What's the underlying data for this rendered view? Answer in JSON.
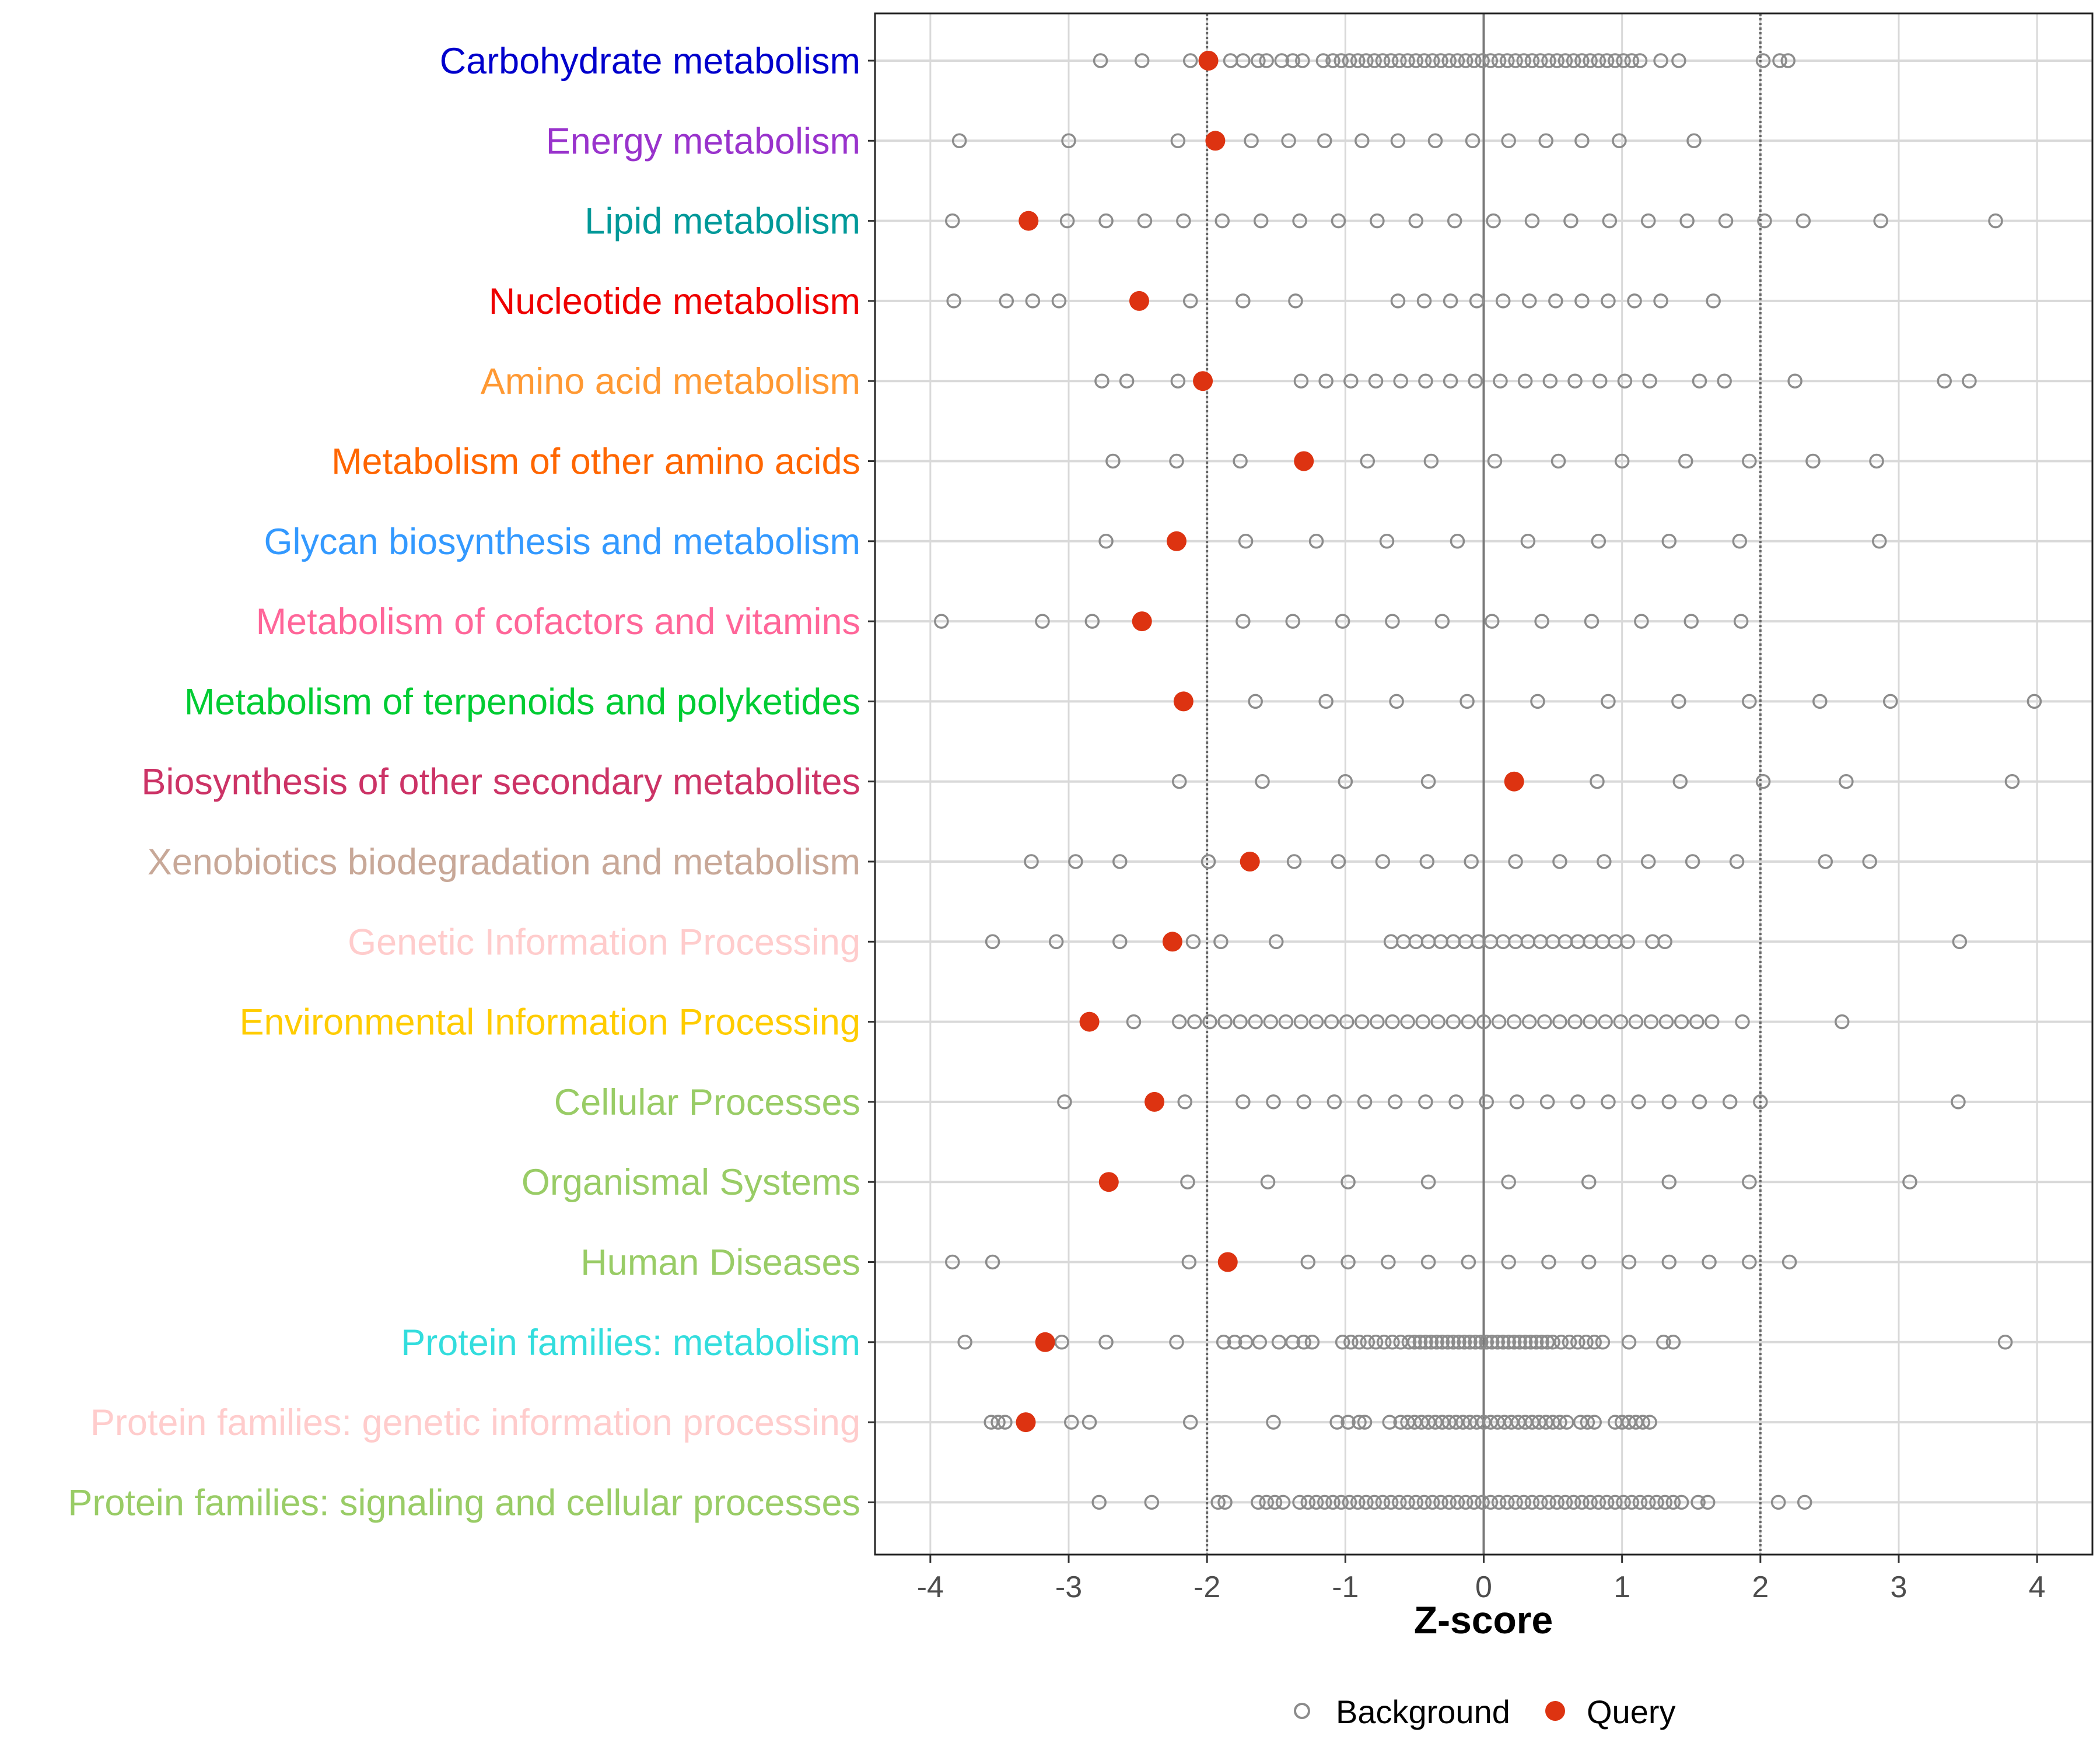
{
  "chart_data": {
    "type": "scatter",
    "title": "",
    "xlabel": "Z-score",
    "ylabel": "",
    "xlim": [
      -4.4,
      4.4
    ],
    "x_ticks": [
      "-4",
      "-3",
      "-2",
      "-1",
      "0",
      "1",
      "2",
      "3",
      "4"
    ],
    "reference_lines": [
      -2,
      0,
      2
    ],
    "grid": true,
    "legend": {
      "position": "bottom",
      "entries": [
        {
          "name": "Background",
          "marker": "open-circle",
          "color": "#8c8c8c"
        },
        {
          "name": "Query",
          "marker": "filled-circle",
          "color": "#dd3311"
        }
      ]
    },
    "categories": [
      {
        "label": "Carbohydrate metabolism",
        "color": "#0000cc",
        "query": -1.99,
        "background": [
          -2.77,
          -2.47,
          -2.12,
          -1.99,
          -1.83,
          -1.74,
          -1.63,
          -1.57,
          -1.46,
          -1.38,
          -1.31,
          -1.16,
          -1.09,
          -1.03,
          -0.97,
          -0.91,
          -0.85,
          -0.79,
          -0.73,
          -0.67,
          -0.61,
          -0.55,
          -0.49,
          -0.43,
          -0.37,
          -0.31,
          -0.25,
          -0.19,
          -0.13,
          -0.07,
          -0.01,
          0.05,
          0.11,
          0.17,
          0.23,
          0.29,
          0.35,
          0.41,
          0.47,
          0.53,
          0.59,
          0.65,
          0.71,
          0.77,
          0.83,
          0.89,
          0.95,
          1.01,
          1.07,
          1.13,
          1.28,
          1.41,
          2.02,
          2.14,
          2.2
        ]
      },
      {
        "label": "Energy metabolism",
        "color": "#9933cc",
        "query": -1.94,
        "background": [
          -3.79,
          -3.0,
          -2.21,
          -1.68,
          -1.41,
          -1.15,
          -0.88,
          -0.62,
          -0.35,
          -0.08,
          0.18,
          0.45,
          0.71,
          0.98,
          1.52
        ]
      },
      {
        "label": "Lipid metabolism",
        "color": "#009999",
        "query": -3.29,
        "background": [
          -3.84,
          -3.01,
          -2.73,
          -2.45,
          -2.17,
          -1.89,
          -1.61,
          -1.33,
          -1.05,
          -0.77,
          -0.49,
          -0.21,
          0.07,
          0.35,
          0.63,
          0.91,
          1.19,
          1.47,
          1.75,
          2.03,
          2.31,
          2.87,
          3.7
        ]
      },
      {
        "label": "Nucleotide metabolism",
        "color": "#ee0000",
        "query": -2.49,
        "background": [
          -3.83,
          -3.45,
          -3.26,
          -3.07,
          -2.12,
          -1.74,
          -1.36,
          -0.62,
          -0.43,
          -0.24,
          -0.05,
          0.14,
          0.33,
          0.52,
          0.71,
          0.9,
          1.09,
          1.28,
          1.66
        ]
      },
      {
        "label": "Amino acid metabolism",
        "color": "#ff9933",
        "query": -2.03,
        "background": [
          -2.76,
          -2.58,
          -2.21,
          -1.32,
          -1.14,
          -0.96,
          -0.78,
          -0.6,
          -0.42,
          -0.24,
          -0.06,
          0.12,
          0.3,
          0.48,
          0.66,
          0.84,
          1.02,
          1.2,
          1.56,
          1.74,
          2.25,
          3.33,
          3.51
        ]
      },
      {
        "label": "Metabolism of other amino acids",
        "color": "#ff6600",
        "query": -1.3,
        "background": [
          -2.68,
          -2.22,
          -1.76,
          -0.84,
          -0.38,
          0.08,
          0.54,
          1.0,
          1.46,
          1.92,
          2.38,
          2.84
        ]
      },
      {
        "label": "Glycan biosynthesis and metabolism",
        "color": "#3399ff",
        "query": -2.22,
        "background": [
          -2.73,
          -1.72,
          -1.21,
          -0.7,
          -0.19,
          0.32,
          0.83,
          1.34,
          1.85,
          2.86
        ]
      },
      {
        "label": "Metabolism of cofactors and vitamins",
        "color": "#ff6699",
        "query": -2.47,
        "background": [
          -3.92,
          -3.19,
          -2.83,
          -1.74,
          -1.38,
          -1.02,
          -0.66,
          -0.3,
          0.06,
          0.42,
          0.78,
          1.14,
          1.5,
          1.86
        ]
      },
      {
        "label": "Metabolism of terpenoids and polyketides",
        "color": "#00cc33",
        "query": -2.17,
        "background": [
          -1.65,
          -1.14,
          -0.63,
          -0.12,
          0.39,
          0.9,
          1.41,
          1.92,
          2.43,
          2.94,
          3.98
        ]
      },
      {
        "label": "Biosynthesis of other secondary metabolites",
        "color": "#cc3366",
        "query": 0.22,
        "background": [
          -2.2,
          -1.6,
          -1.0,
          -0.4,
          0.82,
          1.42,
          2.02,
          2.62,
          3.82
        ]
      },
      {
        "label": "Xenobiotics biodegradation and metabolism",
        "color": "#c8a898",
        "query": -1.69,
        "background": [
          -3.27,
          -2.95,
          -2.63,
          -1.99,
          -1.37,
          -1.05,
          -0.73,
          -0.41,
          -0.09,
          0.23,
          0.55,
          0.87,
          1.19,
          1.51,
          1.83,
          2.47,
          2.79
        ]
      },
      {
        "label": "Genetic Information Processing",
        "color": "#ffcccc",
        "query": -2.25,
        "background": [
          -3.55,
          -3.09,
          -2.63,
          -2.1,
          -1.9,
          -1.5,
          -0.67,
          -0.58,
          -0.49,
          -0.4,
          -0.31,
          -0.22,
          -0.13,
          -0.04,
          0.05,
          0.14,
          0.23,
          0.32,
          0.41,
          0.5,
          0.59,
          0.68,
          0.77,
          0.86,
          0.95,
          1.04,
          1.22,
          1.31,
          3.44
        ]
      },
      {
        "label": "Environmental Information Processing",
        "color": "#ffcc00",
        "query": -2.85,
        "background": [
          -2.53,
          -2.2,
          -2.09,
          -1.98,
          -1.87,
          -1.76,
          -1.65,
          -1.54,
          -1.43,
          -1.32,
          -1.21,
          -1.1,
          -0.99,
          -0.88,
          -0.77,
          -0.66,
          -0.55,
          -0.44,
          -0.33,
          -0.22,
          -0.11,
          0.0,
          0.11,
          0.22,
          0.33,
          0.44,
          0.55,
          0.66,
          0.77,
          0.88,
          0.99,
          1.1,
          1.21,
          1.32,
          1.43,
          1.54,
          1.65,
          1.87,
          2.59
        ]
      },
      {
        "label": "Cellular Processes",
        "color": "#99cc66",
        "query": -2.38,
        "background": [
          -3.03,
          -2.16,
          -1.74,
          -1.52,
          -1.3,
          -1.08,
          -0.86,
          -0.64,
          -0.42,
          -0.2,
          0.02,
          0.24,
          0.46,
          0.68,
          0.9,
          1.12,
          1.34,
          1.56,
          1.78,
          2.0,
          3.43
        ]
      },
      {
        "label": "Organismal Systems",
        "color": "#99cc66",
        "query": -2.71,
        "background": [
          -2.14,
          -1.56,
          -0.98,
          -0.4,
          0.18,
          0.76,
          1.34,
          1.92,
          3.08
        ]
      },
      {
        "label": "Human Diseases",
        "color": "#99cc66",
        "query": -1.85,
        "background": [
          -3.84,
          -3.55,
          -2.13,
          -1.27,
          -0.98,
          -0.69,
          -0.4,
          -0.11,
          0.18,
          0.47,
          0.76,
          1.05,
          1.34,
          1.63,
          1.92,
          2.21
        ]
      },
      {
        "label": "Protein families: metabolism",
        "color": "#33dddd",
        "query": -3.17,
        "background": [
          -3.75,
          -3.05,
          -2.73,
          -2.22,
          -1.88,
          -1.8,
          -1.72,
          -1.62,
          -1.48,
          -1.38,
          -1.3,
          -1.24,
          -1.02,
          -0.96,
          -0.9,
          -0.84,
          -0.78,
          -0.72,
          -0.66,
          -0.6,
          -0.54,
          -0.5,
          -0.46,
          -0.42,
          -0.38,
          -0.34,
          -0.3,
          -0.26,
          -0.22,
          -0.18,
          -0.14,
          -0.1,
          -0.06,
          -0.02,
          0.02,
          0.06,
          0.1,
          0.14,
          0.18,
          0.22,
          0.26,
          0.3,
          0.34,
          0.38,
          0.42,
          0.46,
          0.5,
          0.56,
          0.62,
          0.68,
          0.74,
          0.8,
          0.86,
          1.05,
          1.3,
          1.37,
          3.77
        ]
      },
      {
        "label": "Protein families: genetic information processing",
        "color": "#ffcccc",
        "query": -3.31,
        "background": [
          -3.56,
          -3.51,
          -3.46,
          -2.98,
          -2.85,
          -2.12,
          -1.52,
          -1.06,
          -0.98,
          -0.9,
          -0.86,
          -0.68,
          -0.6,
          -0.55,
          -0.5,
          -0.45,
          -0.4,
          -0.35,
          -0.3,
          -0.25,
          -0.2,
          -0.15,
          -0.1,
          -0.05,
          0.0,
          0.05,
          0.1,
          0.15,
          0.2,
          0.25,
          0.3,
          0.35,
          0.4,
          0.45,
          0.5,
          0.55,
          0.6,
          0.7,
          0.75,
          0.8,
          0.95,
          1.0,
          1.05,
          1.1,
          1.15,
          1.2
        ]
      },
      {
        "label": "Protein families: signaling and cellular processes",
        "color": "#99cc66",
        "query": null,
        "background": [
          -2.78,
          -2.4,
          -1.92,
          -1.87,
          -1.63,
          -1.57,
          -1.51,
          -1.45,
          -1.33,
          -1.27,
          -1.21,
          -1.15,
          -1.09,
          -1.03,
          -0.97,
          -0.91,
          -0.85,
          -0.79,
          -0.73,
          -0.67,
          -0.61,
          -0.55,
          -0.49,
          -0.43,
          -0.37,
          -0.31,
          -0.25,
          -0.19,
          -0.13,
          -0.07,
          -0.01,
          0.05,
          0.11,
          0.17,
          0.23,
          0.29,
          0.35,
          0.41,
          0.47,
          0.53,
          0.59,
          0.65,
          0.71,
          0.77,
          0.83,
          0.89,
          0.95,
          1.01,
          1.07,
          1.13,
          1.19,
          1.25,
          1.31,
          1.37,
          1.43,
          1.55,
          1.62,
          2.13,
          2.32
        ]
      }
    ]
  }
}
